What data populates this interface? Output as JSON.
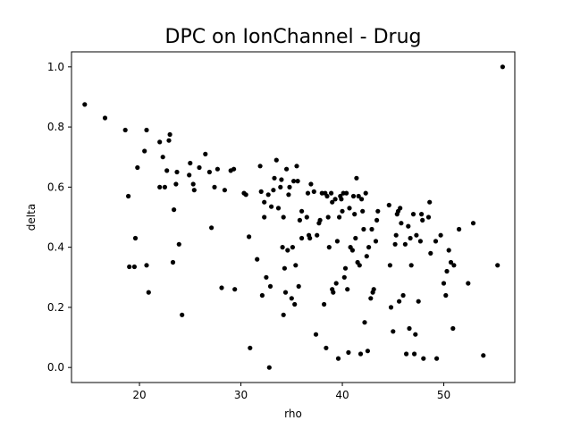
{
  "chart_data": {
    "type": "scatter",
    "title": "DPC on IonChannel - Drug",
    "xlabel": "rho",
    "ylabel": "delta",
    "xlim": [
      13.3,
      57.0
    ],
    "ylim": [
      -0.05,
      1.05
    ],
    "x_ticks": [
      20,
      30,
      40,
      50
    ],
    "y_ticks": [
      0.0,
      0.2,
      0.4,
      0.6,
      0.8,
      1.0
    ],
    "x_tick_labels": [
      "20",
      "30",
      "40",
      "50"
    ],
    "y_tick_labels": [
      "0.0",
      "0.2",
      "0.4",
      "0.6",
      "0.8",
      "1.0"
    ],
    "grid": false,
    "marker_color": "#000000",
    "points": [
      [
        14.6,
        0.875
      ],
      [
        16.6,
        0.83
      ],
      [
        18.6,
        0.79
      ],
      [
        18.9,
        0.57
      ],
      [
        19.0,
        0.335
      ],
      [
        19.5,
        0.335
      ],
      [
        19.6,
        0.43
      ],
      [
        19.8,
        0.665
      ],
      [
        20.5,
        0.72
      ],
      [
        20.7,
        0.79
      ],
      [
        20.7,
        0.34
      ],
      [
        20.9,
        0.25
      ],
      [
        22.0,
        0.75
      ],
      [
        22.0,
        0.6
      ],
      [
        22.3,
        0.7
      ],
      [
        22.5,
        0.6
      ],
      [
        22.7,
        0.655
      ],
      [
        22.9,
        0.755
      ],
      [
        23.0,
        0.775
      ],
      [
        23.3,
        0.35
      ],
      [
        23.4,
        0.525
      ],
      [
        23.6,
        0.61
      ],
      [
        23.7,
        0.65
      ],
      [
        23.9,
        0.41
      ],
      [
        24.2,
        0.175
      ],
      [
        24.9,
        0.64
      ],
      [
        25.0,
        0.68
      ],
      [
        25.3,
        0.61
      ],
      [
        25.4,
        0.59
      ],
      [
        25.9,
        0.665
      ],
      [
        26.5,
        0.71
      ],
      [
        26.9,
        0.65
      ],
      [
        27.1,
        0.465
      ],
      [
        27.4,
        0.6
      ],
      [
        27.7,
        0.66
      ],
      [
        28.1,
        0.265
      ],
      [
        28.4,
        0.59
      ],
      [
        29.0,
        0.655
      ],
      [
        29.3,
        0.66
      ],
      [
        29.4,
        0.26
      ],
      [
        30.3,
        0.58
      ],
      [
        30.5,
        0.575
      ],
      [
        30.8,
        0.435
      ],
      [
        30.9,
        0.065
      ],
      [
        31.6,
        0.36
      ],
      [
        31.9,
        0.67
      ],
      [
        32.0,
        0.585
      ],
      [
        32.1,
        0.24
      ],
      [
        32.3,
        0.55
      ],
      [
        32.3,
        0.5
      ],
      [
        32.5,
        0.3
      ],
      [
        32.7,
        0.575
      ],
      [
        32.8,
        0.0
      ],
      [
        32.9,
        0.27
      ],
      [
        33.0,
        0.535
      ],
      [
        33.2,
        0.59
      ],
      [
        33.3,
        0.63
      ],
      [
        33.5,
        0.69
      ],
      [
        33.7,
        0.53
      ],
      [
        33.9,
        0.6
      ],
      [
        34.0,
        0.625
      ],
      [
        34.1,
        0.4
      ],
      [
        34.2,
        0.5
      ],
      [
        34.2,
        0.175
      ],
      [
        34.3,
        0.33
      ],
      [
        34.4,
        0.25
      ],
      [
        34.5,
        0.66
      ],
      [
        34.6,
        0.39
      ],
      [
        34.7,
        0.575
      ],
      [
        34.8,
        0.6
      ],
      [
        35.0,
        0.23
      ],
      [
        35.1,
        0.4
      ],
      [
        35.2,
        0.62
      ],
      [
        35.3,
        0.21
      ],
      [
        35.4,
        0.34
      ],
      [
        35.5,
        0.67
      ],
      [
        35.6,
        0.62
      ],
      [
        35.7,
        0.27
      ],
      [
        35.8,
        0.49
      ],
      [
        36.0,
        0.43
      ],
      [
        36.0,
        0.52
      ],
      [
        36.5,
        0.5
      ],
      [
        36.6,
        0.58
      ],
      [
        36.7,
        0.44
      ],
      [
        36.8,
        0.43
      ],
      [
        36.9,
        0.61
      ],
      [
        37.2,
        0.585
      ],
      [
        37.4,
        0.11
      ],
      [
        37.5,
        0.44
      ],
      [
        37.7,
        0.48
      ],
      [
        37.8,
        0.49
      ],
      [
        38.0,
        0.58
      ],
      [
        38.2,
        0.21
      ],
      [
        38.3,
        0.58
      ],
      [
        38.4,
        0.065
      ],
      [
        38.5,
        0.57
      ],
      [
        38.6,
        0.5
      ],
      [
        38.7,
        0.4
      ],
      [
        38.9,
        0.58
      ],
      [
        39.0,
        0.26
      ],
      [
        39.0,
        0.55
      ],
      [
        39.1,
        0.25
      ],
      [
        39.3,
        0.56
      ],
      [
        39.4,
        0.28
      ],
      [
        39.5,
        0.42
      ],
      [
        39.6,
        0.03
      ],
      [
        39.7,
        0.5
      ],
      [
        39.8,
        0.57
      ],
      [
        39.9,
        0.56
      ],
      [
        40.0,
        0.52
      ],
      [
        40.1,
        0.58
      ],
      [
        40.2,
        0.3
      ],
      [
        40.3,
        0.33
      ],
      [
        40.4,
        0.58
      ],
      [
        40.5,
        0.26
      ],
      [
        40.6,
        0.05
      ],
      [
        40.7,
        0.53
      ],
      [
        40.8,
        0.4
      ],
      [
        41.0,
        0.39
      ],
      [
        41.1,
        0.57
      ],
      [
        41.2,
        0.51
      ],
      [
        41.3,
        0.43
      ],
      [
        41.4,
        0.63
      ],
      [
        41.5,
        0.35
      ],
      [
        41.6,
        0.57
      ],
      [
        41.7,
        0.34
      ],
      [
        41.8,
        0.045
      ],
      [
        41.9,
        0.56
      ],
      [
        42.0,
        0.52
      ],
      [
        42.1,
        0.46
      ],
      [
        42.2,
        0.15
      ],
      [
        42.3,
        0.58
      ],
      [
        42.4,
        0.37
      ],
      [
        42.5,
        0.055
      ],
      [
        42.6,
        0.4
      ],
      [
        42.8,
        0.23
      ],
      [
        42.9,
        0.46
      ],
      [
        43.0,
        0.25
      ],
      [
        43.1,
        0.26
      ],
      [
        43.3,
        0.42
      ],
      [
        43.4,
        0.49
      ],
      [
        43.5,
        0.52
      ],
      [
        44.6,
        0.54
      ],
      [
        44.7,
        0.34
      ],
      [
        44.8,
        0.2
      ],
      [
        45.0,
        0.12
      ],
      [
        45.2,
        0.41
      ],
      [
        45.3,
        0.44
      ],
      [
        45.4,
        0.51
      ],
      [
        45.5,
        0.52
      ],
      [
        45.6,
        0.22
      ],
      [
        45.7,
        0.53
      ],
      [
        45.8,
        0.48
      ],
      [
        46.0,
        0.24
      ],
      [
        46.2,
        0.41
      ],
      [
        46.3,
        0.045
      ],
      [
        46.5,
        0.47
      ],
      [
        46.6,
        0.13
      ],
      [
        46.7,
        0.43
      ],
      [
        46.8,
        0.34
      ],
      [
        47.0,
        0.51
      ],
      [
        47.1,
        0.045
      ],
      [
        47.2,
        0.11
      ],
      [
        47.3,
        0.44
      ],
      [
        47.5,
        0.22
      ],
      [
        47.7,
        0.42
      ],
      [
        47.8,
        0.51
      ],
      [
        47.9,
        0.49
      ],
      [
        48.0,
        0.03
      ],
      [
        48.5,
        0.5
      ],
      [
        48.6,
        0.55
      ],
      [
        48.7,
        0.38
      ],
      [
        49.2,
        0.42
      ],
      [
        49.3,
        0.03
      ],
      [
        49.7,
        0.44
      ],
      [
        50.0,
        0.28
      ],
      [
        50.2,
        0.24
      ],
      [
        50.3,
        0.32
      ],
      [
        50.5,
        0.39
      ],
      [
        50.7,
        0.35
      ],
      [
        50.9,
        0.13
      ],
      [
        51.0,
        0.34
      ],
      [
        51.5,
        0.46
      ],
      [
        52.4,
        0.28
      ],
      [
        52.9,
        0.48
      ],
      [
        53.9,
        0.04
      ],
      [
        55.3,
        0.34
      ],
      [
        55.8,
        1.0
      ]
    ]
  }
}
